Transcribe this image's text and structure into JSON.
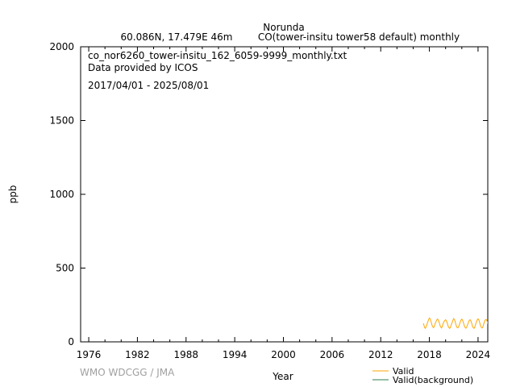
{
  "chart_data": {
    "type": "line",
    "title": "Norunda",
    "subtitle_location": "60.086N, 17.479E 46m",
    "subtitle_species": "CO(tower-insitu tower58 default) monthly",
    "annotations": [
      "co_nor6260_tower-insitu_162_6059-9999_monthly.txt",
      "Data provided by ICOS",
      "2017/04/01 - 2025/08/01"
    ],
    "xlabel": "Year",
    "ylabel": "ppb",
    "xlim": [
      1975,
      2025.2
    ],
    "ylim": [
      0,
      2000
    ],
    "xticks": [
      1976,
      1982,
      1988,
      1994,
      2000,
      2006,
      2012,
      2018,
      2024
    ],
    "yticks": [
      0,
      500,
      1000,
      1500,
      2000
    ],
    "grid": false,
    "legend_placement": "bottom-right",
    "watermark": "WMO WDCGG / JMA",
    "start": "2017-04",
    "series": [
      {
        "name": "Valid",
        "color": "#ffa500",
        "values": [
          125,
          112,
          98,
          92,
          100,
          112,
          128,
          140,
          152,
          162,
          158,
          145,
          128,
          112,
          102,
          96,
          101,
          115,
          130,
          138,
          150,
          155,
          150,
          140,
          125,
          108,
          100,
          94,
          104,
          118,
          132,
          140,
          146,
          150,
          145,
          132,
          118,
          104,
          96,
          92,
          98,
          110,
          124,
          135,
          148,
          158,
          152,
          140,
          122,
          106,
          98,
          95,
          100,
          112,
          126,
          138,
          150,
          154,
          148,
          136,
          120,
          105,
          97,
          93,
          99,
          110,
          123,
          134,
          145,
          150,
          146,
          135,
          120,
          104,
          96,
          92,
          98,
          112,
          128,
          140,
          152,
          156,
          150,
          138,
          122,
          106,
          97,
          94,
          100,
          114,
          130,
          142,
          150,
          152,
          146,
          134,
          120,
          108,
          100,
          104,
          110
        ]
      },
      {
        "name": "Valid(background)",
        "color": "#2e7d4f",
        "values": []
      }
    ]
  }
}
